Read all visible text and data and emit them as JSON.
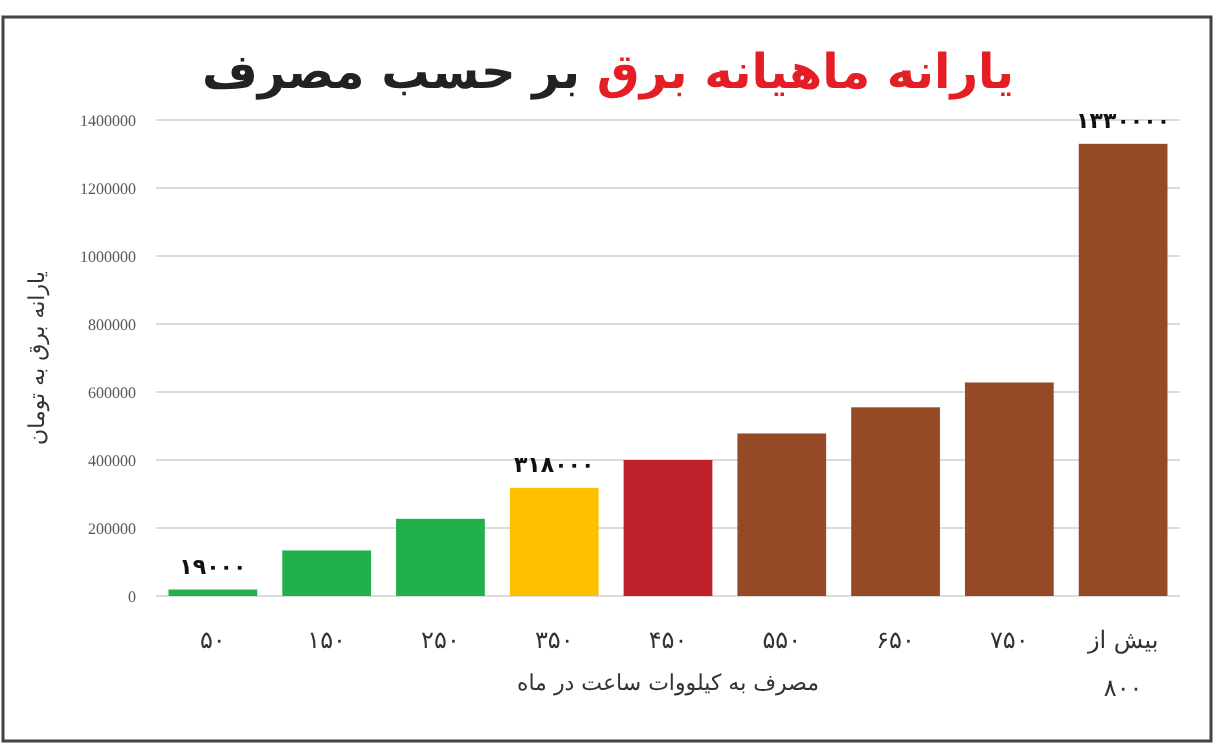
{
  "chart_data": {
    "type": "bar",
    "title": "یارانه ماهیانه برق",
    "subtitle": "بر حسب مصرف",
    "xlabel": "مصرف به کیلووات ساعت در ماه",
    "ylabel": "یارانه برق به تومان",
    "categories": [
      "۵۰",
      "۱۵۰",
      "۲۵۰",
      "۳۵۰",
      "۴۵۰",
      "۵۵۰",
      "۶۵۰",
      "۷۵۰",
      "بیش از ۸۰۰"
    ],
    "values": [
      19000,
      134000,
      227000,
      318000,
      400000,
      478000,
      555000,
      628000,
      1330000
    ],
    "colors": [
      "#22b04b",
      "#22b04b",
      "#22b04b",
      "#ffc000",
      "#c0202a",
      "#954a25",
      "#954a25",
      "#954a25",
      "#954a25"
    ],
    "value_labels": [
      "۱۹۰۰۰",
      null,
      null,
      "۳۱۸۰۰۰",
      null,
      null,
      null,
      null,
      "۱۳۳۰۰۰۰"
    ],
    "ylim": [
      0,
      1400000
    ],
    "yticks": [
      0,
      200000,
      400000,
      600000,
      800000,
      1000000,
      1200000,
      1400000
    ],
    "grid": "y"
  }
}
